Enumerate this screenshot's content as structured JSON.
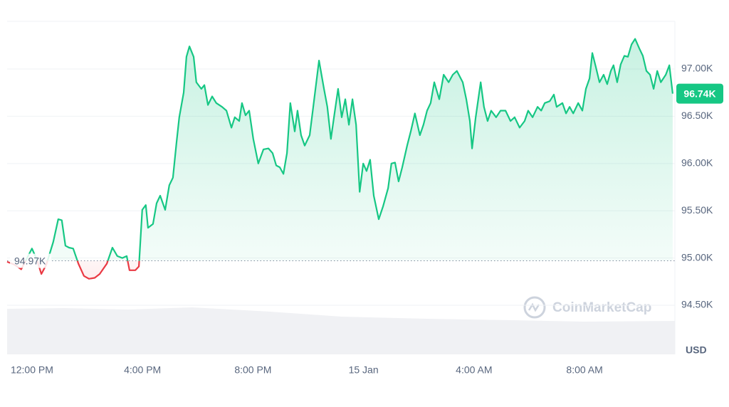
{
  "chart_data": {
    "type": "line",
    "x": [
      -0.9,
      -0.64,
      -0.39,
      0,
      0.18,
      0.34,
      0.52,
      0.77,
      0.95,
      1.08,
      1.21,
      1.34,
      1.49,
      1.68,
      1.88,
      2.06,
      2.27,
      2.45,
      2.71,
      2.91,
      3.09,
      3.27,
      3.43,
      3.53,
      3.74,
      3.87,
      3.99,
      4.12,
      4.2,
      4.38,
      4.51,
      4.64,
      4.82,
      4.97,
      5.1,
      5.23,
      5.33,
      5.49,
      5.59,
      5.7,
      5.85,
      5.95,
      6.13,
      6.24,
      6.37,
      6.52,
      6.67,
      6.88,
      7.04,
      7.22,
      7.34,
      7.5,
      7.6,
      7.73,
      7.86,
      8.01,
      8.19,
      8.38,
      8.56,
      8.71,
      8.84,
      8.97,
      9.1,
      9.23,
      9.35,
      9.51,
      9.61,
      9.74,
      9.87,
      10.05,
      10.18,
      10.39,
      10.57,
      10.69,
      10.82,
      10.95,
      11.08,
      11.21,
      11.34,
      11.47,
      11.6,
      11.73,
      11.86,
      11.99,
      12.11,
      12.24,
      12.37,
      12.55,
      12.71,
      12.89,
      13.01,
      13.14,
      13.27,
      13.4,
      13.58,
      13.71,
      13.86,
      14.04,
      14.17,
      14.3,
      14.43,
      14.56,
      14.74,
      14.9,
      15.08,
      15.23,
      15.38,
      15.59,
      15.72,
      15.85,
      15.93,
      16.06,
      16.24,
      16.36,
      16.49,
      16.62,
      16.8,
      16.96,
      17.14,
      17.32,
      17.47,
      17.65,
      17.83,
      17.96,
      18.12,
      18.3,
      18.43,
      18.56,
      18.74,
      18.89,
      18.99,
      19.2,
      19.33,
      19.46,
      19.59,
      19.77,
      19.92,
      20.05,
      20.18,
      20.28,
      20.41,
      20.54,
      20.69,
      20.82,
      20.95,
      21.05,
      21.18,
      21.31,
      21.44,
      21.57,
      21.7,
      21.83,
      21.98,
      22.11,
      22.24,
      22.37,
      22.5,
      22.63,
      22.76,
      22.94,
      23.07,
      23.19
    ],
    "values": [
      94.96,
      94.93,
      94.88,
      95.1,
      94.98,
      94.83,
      94.93,
      95.17,
      95.41,
      95.4,
      95.13,
      95.11,
      95.1,
      94.94,
      94.81,
      94.78,
      94.79,
      94.83,
      94.94,
      95.11,
      95.02,
      95.0,
      95.02,
      94.87,
      94.87,
      94.91,
      95.51,
      95.56,
      95.32,
      95.36,
      95.58,
      95.66,
      95.51,
      95.77,
      95.85,
      96.22,
      96.49,
      96.75,
      97.13,
      97.24,
      97.13,
      96.86,
      96.79,
      96.83,
      96.62,
      96.71,
      96.64,
      96.6,
      96.56,
      96.38,
      96.49,
      96.45,
      96.64,
      96.51,
      96.56,
      96.26,
      96.0,
      96.15,
      96.16,
      96.11,
      95.98,
      95.96,
      95.89,
      96.11,
      96.64,
      96.34,
      96.56,
      96.3,
      96.19,
      96.3,
      96.6,
      97.09,
      96.79,
      96.6,
      96.26,
      96.53,
      96.79,
      96.49,
      96.68,
      96.41,
      96.68,
      96.41,
      95.7,
      96.0,
      95.92,
      96.04,
      95.66,
      95.41,
      95.55,
      95.74,
      96.0,
      96.01,
      95.81,
      95.96,
      96.19,
      96.34,
      96.53,
      96.3,
      96.41,
      96.56,
      96.64,
      96.86,
      96.68,
      96.94,
      96.86,
      96.94,
      96.98,
      96.86,
      96.68,
      96.45,
      96.16,
      96.49,
      96.86,
      96.6,
      96.45,
      96.56,
      96.49,
      96.56,
      96.56,
      96.45,
      96.49,
      96.38,
      96.45,
      96.56,
      96.49,
      96.6,
      96.56,
      96.64,
      96.66,
      96.73,
      96.6,
      96.64,
      96.53,
      96.6,
      96.53,
      96.64,
      96.56,
      96.79,
      96.9,
      97.17,
      97.02,
      96.86,
      96.94,
      96.84,
      96.98,
      97.04,
      96.86,
      97.05,
      97.14,
      97.13,
      97.26,
      97.32,
      97.22,
      97.14,
      96.98,
      96.94,
      96.79,
      96.98,
      96.86,
      96.94,
      97.04,
      96.74
    ],
    "xlim": [
      -0.9,
      23.27
    ],
    "xticks": [
      {
        "value": 0,
        "label": "12:00 PM"
      },
      {
        "value": 4,
        "label": "4:00 PM"
      },
      {
        "value": 8,
        "label": "8:00 PM"
      },
      {
        "value": 12,
        "label": "15 Jan"
      },
      {
        "value": 16,
        "label": "4:00 AM"
      },
      {
        "value": 20,
        "label": "8:00 AM"
      }
    ],
    "ylim": [
      93.98,
      97.505
    ],
    "yticks": [
      {
        "value": 94.5,
        "label": "94.50K"
      },
      {
        "value": 95,
        "label": "95.00K"
      },
      {
        "value": 95.5,
        "label": "95.50K"
      },
      {
        "value": 96,
        "label": "96.00K"
      },
      {
        "value": 96.5,
        "label": "96.50K"
      },
      {
        "value": 97,
        "label": "97.00K"
      }
    ],
    "baseline": {
      "value": 94.97,
      "label": "94.97K"
    },
    "last_price": {
      "value": 96.74,
      "label": "96.74K"
    },
    "up_color": "#16c784",
    "down_color": "#ea3943",
    "unit": "USD",
    "watermark": "CoinMarketCap",
    "grid": true
  }
}
